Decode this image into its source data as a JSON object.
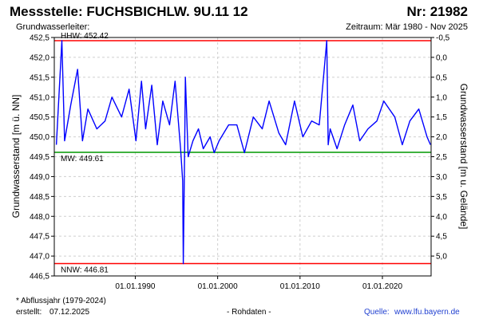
{
  "header": {
    "title": "Messstelle: FUCHSBICHLW. 9U.11 12",
    "station_no": "Nr: 21982",
    "aquifer": "Grundwasserleiter:",
    "period": "Zeitraum: Mär 1980 - Nov 2025"
  },
  "footer": {
    "note": "* Abflussjahr (1979-2024)",
    "created_label": "erstellt:",
    "created_date": "07.12.2025",
    "data_kind": "- Rohdaten -",
    "source_label": "Quelle:",
    "source_link": "www.lfu.bayern.de"
  },
  "colors": {
    "series": "#0000ff",
    "extremes": "#ff0000",
    "mean": "#009900",
    "grid": "#cfcfcf"
  },
  "chart_data": {
    "type": "line",
    "ylabel": "Grundwasserstand [m ü. NN]",
    "y2label": "Grundwasserstand [m u. Gelände]",
    "ylim": [
      446.5,
      452.5
    ],
    "yticks": [
      "452,5",
      "452,0",
      "451,5",
      "451,0",
      "450,5",
      "450,0",
      "449,5",
      "449,0",
      "448,5",
      "448,0",
      "447,5",
      "447,0",
      "446,5"
    ],
    "y2ticks": [
      "-0,5",
      "0,0",
      "0,5",
      "1,0",
      "1,5",
      "2,0",
      "2,5",
      "3,0",
      "3,5",
      "4,0",
      "4,5",
      "5,0"
    ],
    "xlim": [
      "1980-03-01",
      "2025-11-30"
    ],
    "xticks": [
      "01.01.1990",
      "01.01.2000",
      "01.01.2010",
      "01.01.2020"
    ],
    "grid": true,
    "ref_lines": [
      {
        "label": "HHW: 452.42",
        "value": 452.42
      },
      {
        "label": "MW: 449.61",
        "value": 449.61
      },
      {
        "label": "NNW: 446.81",
        "value": 446.81
      }
    ],
    "series": [
      {
        "x": [
          "1980-06",
          "1981-02",
          "1981-06",
          "1982-03",
          "1983-01",
          "1983-08",
          "1984-04",
          "1985-05",
          "1986-05",
          "1987-03",
          "1988-05",
          "1989-04",
          "1990-02",
          "1990-10",
          "1991-04",
          "1992-01",
          "1992-09",
          "1993-05",
          "1994-03",
          "1994-11",
          "1995-07",
          "1995-10",
          "1995-11",
          "1996-01",
          "1996-02",
          "1996-06",
          "1997-01",
          "1997-09",
          "1998-04",
          "1999-02",
          "1999-08",
          "2000-03",
          "2001-05",
          "2002-05",
          "2003-04",
          "2004-05",
          "2005-06",
          "2006-04",
          "2007-06",
          "2008-04",
          "2009-05",
          "2010-05",
          "2011-06",
          "2012-05",
          "2013-04",
          "2013-06",
          "2013-09",
          "2014-07",
          "2015-06",
          "2016-06",
          "2017-04",
          "2018-04",
          "2019-05",
          "2020-03",
          "2021-07",
          "2022-06",
          "2023-05",
          "2024-06",
          "2025-06",
          "2025-11"
        ],
        "y": [
          449.8,
          452.42,
          449.9,
          450.8,
          451.7,
          449.9,
          450.7,
          450.2,
          450.4,
          451.0,
          450.5,
          451.2,
          449.9,
          451.4,
          450.2,
          451.3,
          449.8,
          450.9,
          450.3,
          451.4,
          449.7,
          448.9,
          446.81,
          449.9,
          451.5,
          449.5,
          449.9,
          450.2,
          449.7,
          450.0,
          449.6,
          449.9,
          450.3,
          450.3,
          449.6,
          450.5,
          450.2,
          450.9,
          450.1,
          449.8,
          450.9,
          450.0,
          450.4,
          450.3,
          452.42,
          449.8,
          450.2,
          449.7,
          450.3,
          450.8,
          449.9,
          450.2,
          450.4,
          450.9,
          450.5,
          449.8,
          450.4,
          450.7,
          450.0,
          449.8
        ]
      }
    ]
  }
}
